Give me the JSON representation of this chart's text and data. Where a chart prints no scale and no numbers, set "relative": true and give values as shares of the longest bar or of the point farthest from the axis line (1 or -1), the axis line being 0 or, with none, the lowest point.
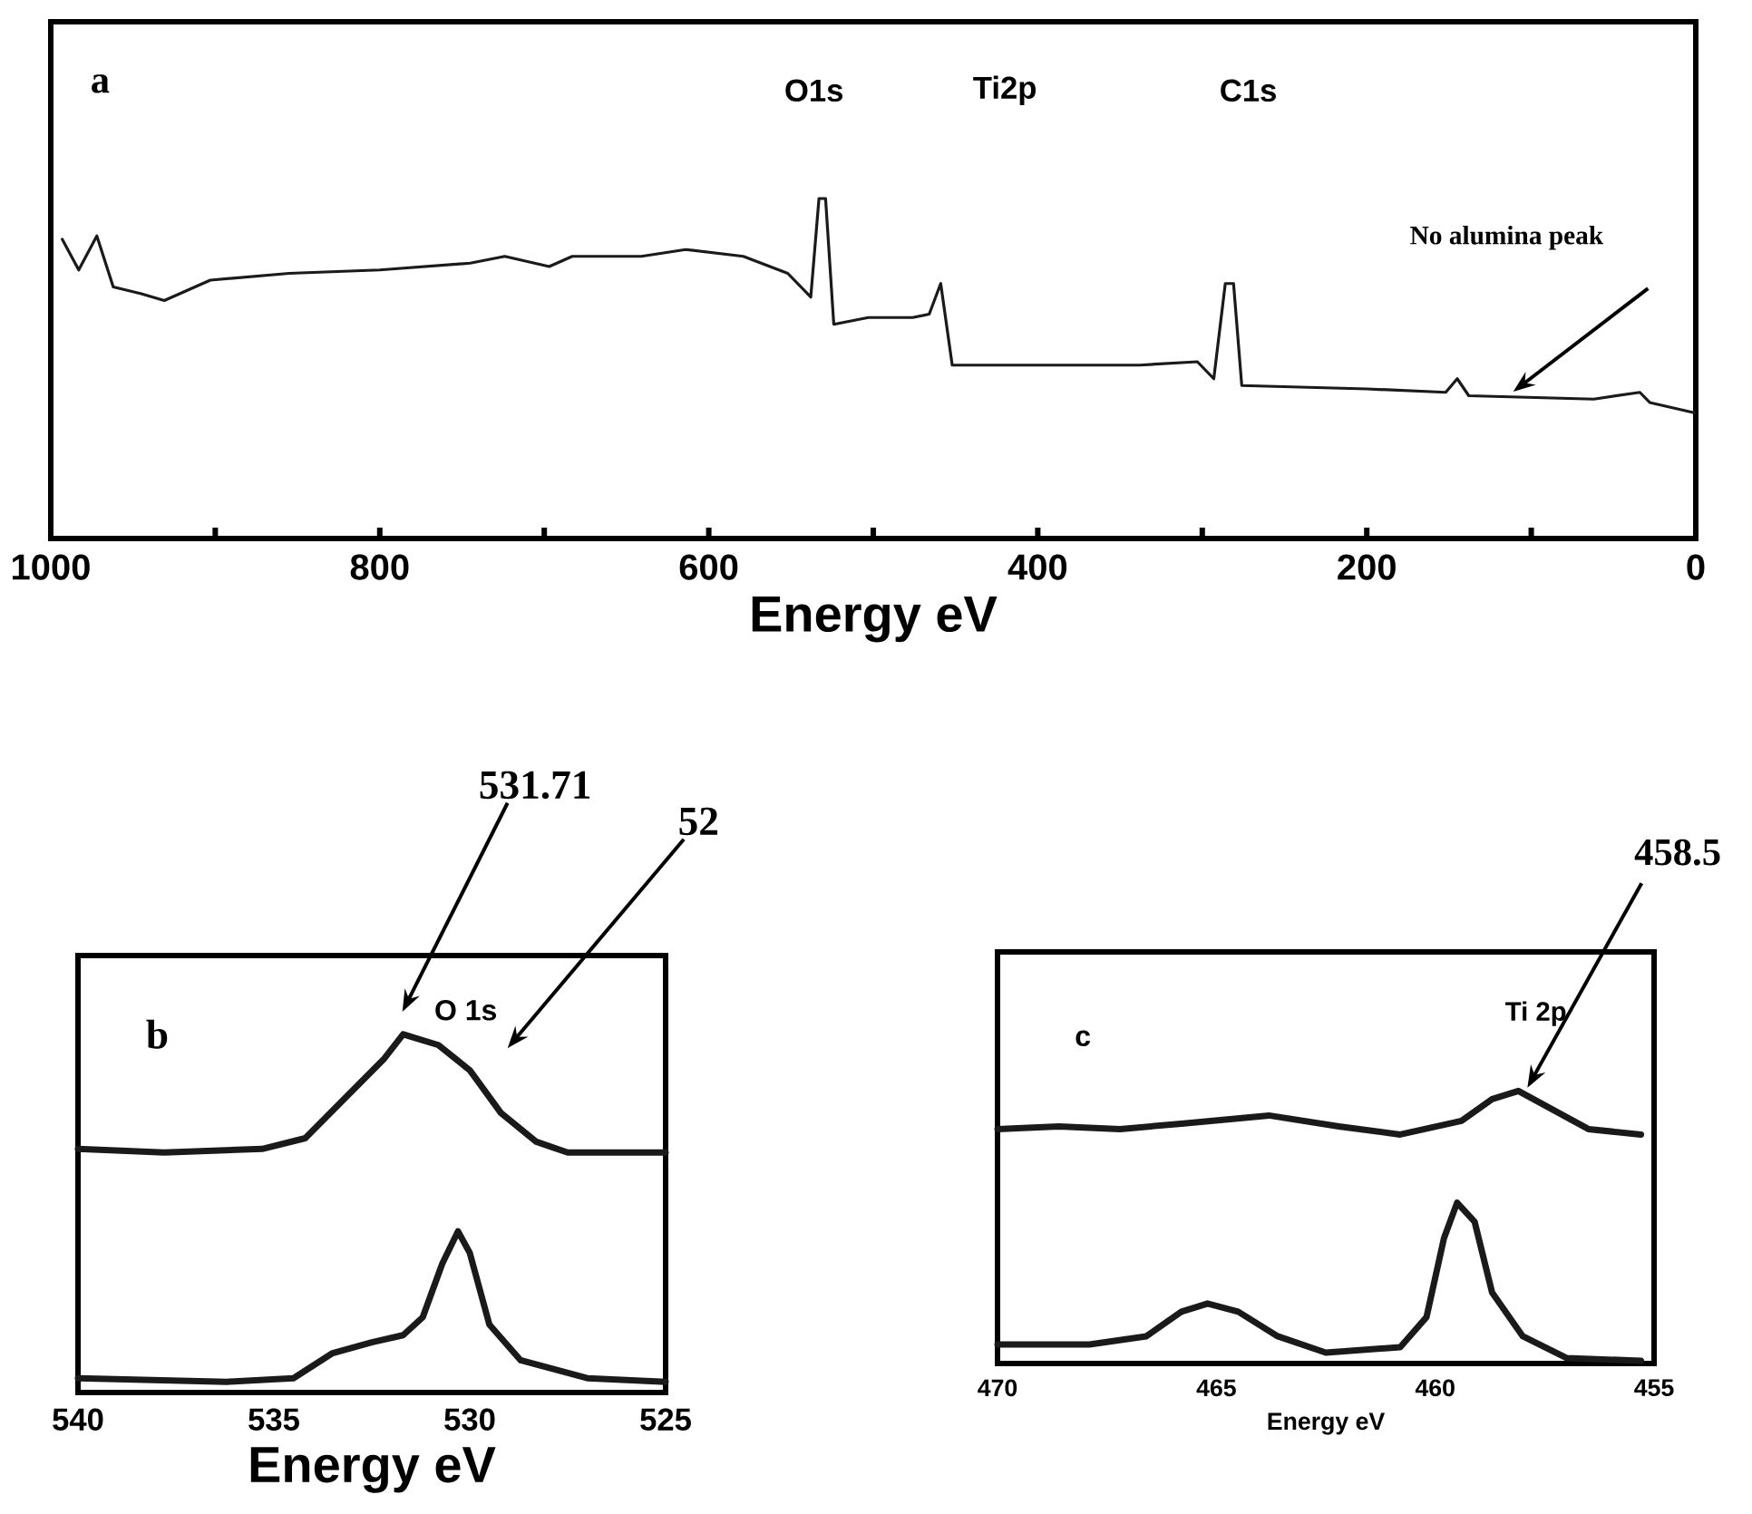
{
  "chart_data": [
    {
      "type": "line",
      "relative": true,
      "xlabel": "Energy eV",
      "xlim": [
        1000,
        0
      ],
      "xticks": [
        1000,
        {
          "value": 900,
          "label": null
        },
        800,
        {
          "value": 700,
          "label": null
        },
        600,
        {
          "value": 500,
          "label": null
        },
        400,
        {
          "value": 300,
          "label": null
        },
        200,
        {
          "value": 100,
          "label": null
        },
        0
      ],
      "series": [
        {
          "color": "#1a1a1a",
          "x": [
            993,
            983,
            972,
            962,
            945,
            931,
            903,
            855,
            800,
            745,
            724,
            697,
            683,
            641,
            614,
            579,
            552,
            538,
            533,
            529,
            524,
            503,
            476,
            466,
            459,
            452,
            407,
            338,
            303,
            293,
            286,
            281,
            276,
            200,
            152,
            145,
            138,
            62,
            34,
            28,
            1
          ],
          "values": [
            0.88,
            0.79,
            0.89,
            0.74,
            0.72,
            0.7,
            0.76,
            0.78,
            0.79,
            0.81,
            0.83,
            0.8,
            0.83,
            0.83,
            0.85,
            0.83,
            0.78,
            0.71,
            1.0,
            1.0,
            0.63,
            0.65,
            0.65,
            0.66,
            0.75,
            0.51,
            0.51,
            0.51,
            0.52,
            0.47,
            0.75,
            0.75,
            0.45,
            0.44,
            0.43,
            0.47,
            0.42,
            0.41,
            0.43,
            0.4,
            0.37
          ]
        }
      ],
      "annotations": [
        "a",
        "O1s",
        "Ti2p",
        "C1s",
        "No alumina peak"
      ]
    },
    {
      "type": "line",
      "relative": true,
      "xlabel": "Energy eV",
      "xlim": [
        540,
        525
      ],
      "xticks": [
        540,
        535,
        530,
        525
      ],
      "series": [
        {
          "color": "#1a1a1a",
          "x": [
            540,
            537.8,
            535.3,
            534.2,
            533.2,
            532.2,
            531.7,
            530.8,
            530,
            529.2,
            528.3,
            527.5,
            525
          ],
          "values": [
            0.68,
            0.67,
            0.68,
            0.71,
            0.82,
            0.93,
            1.0,
            0.97,
            0.9,
            0.78,
            0.7,
            0.67,
            0.67
          ]
        },
        {
          "color": "#1a1a1a",
          "x": [
            540,
            536.2,
            534.5,
            533.5,
            532.5,
            531.7,
            531.2,
            530.7,
            530.3,
            530,
            529.5,
            528.7,
            527,
            525
          ],
          "values": [
            0.04,
            0.03,
            0.04,
            0.11,
            0.14,
            0.16,
            0.21,
            0.36,
            0.45,
            0.39,
            0.19,
            0.09,
            0.04,
            0.03
          ]
        }
      ],
      "annotations": [
        "b",
        "O 1s",
        "531.71",
        "52"
      ]
    },
    {
      "type": "line",
      "relative": true,
      "xlabel": "Energy eV",
      "xlim": [
        470,
        455
      ],
      "xticks": [
        470,
        465,
        460,
        455
      ],
      "series": [
        {
          "color": "#1a1a1a",
          "x": [
            470,
            468.6,
            467.2,
            465.8,
            463.8,
            462.2,
            460.8,
            459.4,
            458.7,
            458.1,
            457.3,
            456.5,
            455.3
          ],
          "values": [
            0.86,
            0.87,
            0.86,
            0.88,
            0.91,
            0.87,
            0.84,
            0.89,
            0.97,
            1.0,
            0.93,
            0.86,
            0.84
          ]
        },
        {
          "color": "#1a1a1a",
          "x": [
            470,
            467.9,
            466.6,
            465.8,
            465.2,
            464.5,
            463.6,
            462.5,
            460.8,
            460.2,
            459.8,
            459.5,
            459.1,
            458.7,
            458.0,
            457.0,
            455.3
          ],
          "values": [
            0.07,
            0.07,
            0.1,
            0.19,
            0.22,
            0.19,
            0.1,
            0.04,
            0.06,
            0.17,
            0.46,
            0.59,
            0.52,
            0.26,
            0.1,
            0.02,
            0.01
          ]
        }
      ],
      "annotations": [
        "c",
        "Ti 2p",
        "458.5"
      ]
    }
  ]
}
